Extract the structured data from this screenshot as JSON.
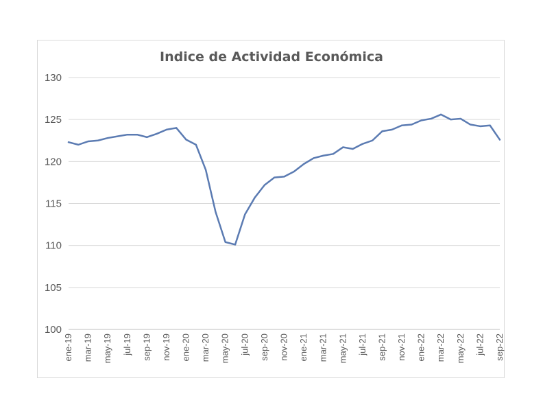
{
  "chart_data": {
    "type": "line",
    "title": "Indice de Actividad Económica",
    "xlabel": "",
    "ylabel": "",
    "ylim": [
      100,
      130
    ],
    "yticks": [
      100,
      105,
      110,
      115,
      120,
      125,
      130
    ],
    "grid": true,
    "legend": "none",
    "tick_label_every": 2,
    "categories": [
      "ene-19",
      "feb-19",
      "mar-19",
      "abr-19",
      "may-19",
      "jun-19",
      "jul-19",
      "ago-19",
      "sep-19",
      "oct-19",
      "nov-19",
      "dic-19",
      "ene-20",
      "feb-20",
      "mar-20",
      "abr-20",
      "may-20",
      "jun-20",
      "jul-20",
      "ago-20",
      "sep-20",
      "oct-20",
      "nov-20",
      "dic-20",
      "ene-21",
      "feb-21",
      "mar-21",
      "abr-21",
      "may-21",
      "jun-21",
      "jul-21",
      "ago-21",
      "sep-21",
      "oct-21",
      "nov-21",
      "dic-21",
      "ene-22",
      "feb-22",
      "mar-22",
      "abr-22",
      "may-22",
      "jun-22",
      "jul-22",
      "ago-22",
      "sep-22"
    ],
    "series": [
      {
        "color": "#5b7bb2",
        "values": [
          122.3,
          122.0,
          122.4,
          122.5,
          122.8,
          123.0,
          123.2,
          123.2,
          122.9,
          123.3,
          123.8,
          124.0,
          122.6,
          122.0,
          119.0,
          114.0,
          110.4,
          110.1,
          113.7,
          115.7,
          117.2,
          118.1,
          118.2,
          118.8,
          119.7,
          120.4,
          120.7,
          120.9,
          121.7,
          121.5,
          122.1,
          122.5,
          123.6,
          123.8,
          124.3,
          124.4,
          124.9,
          125.1,
          125.6,
          125.0,
          125.1,
          124.4,
          124.2,
          124.3,
          122.6
        ]
      }
    ]
  }
}
